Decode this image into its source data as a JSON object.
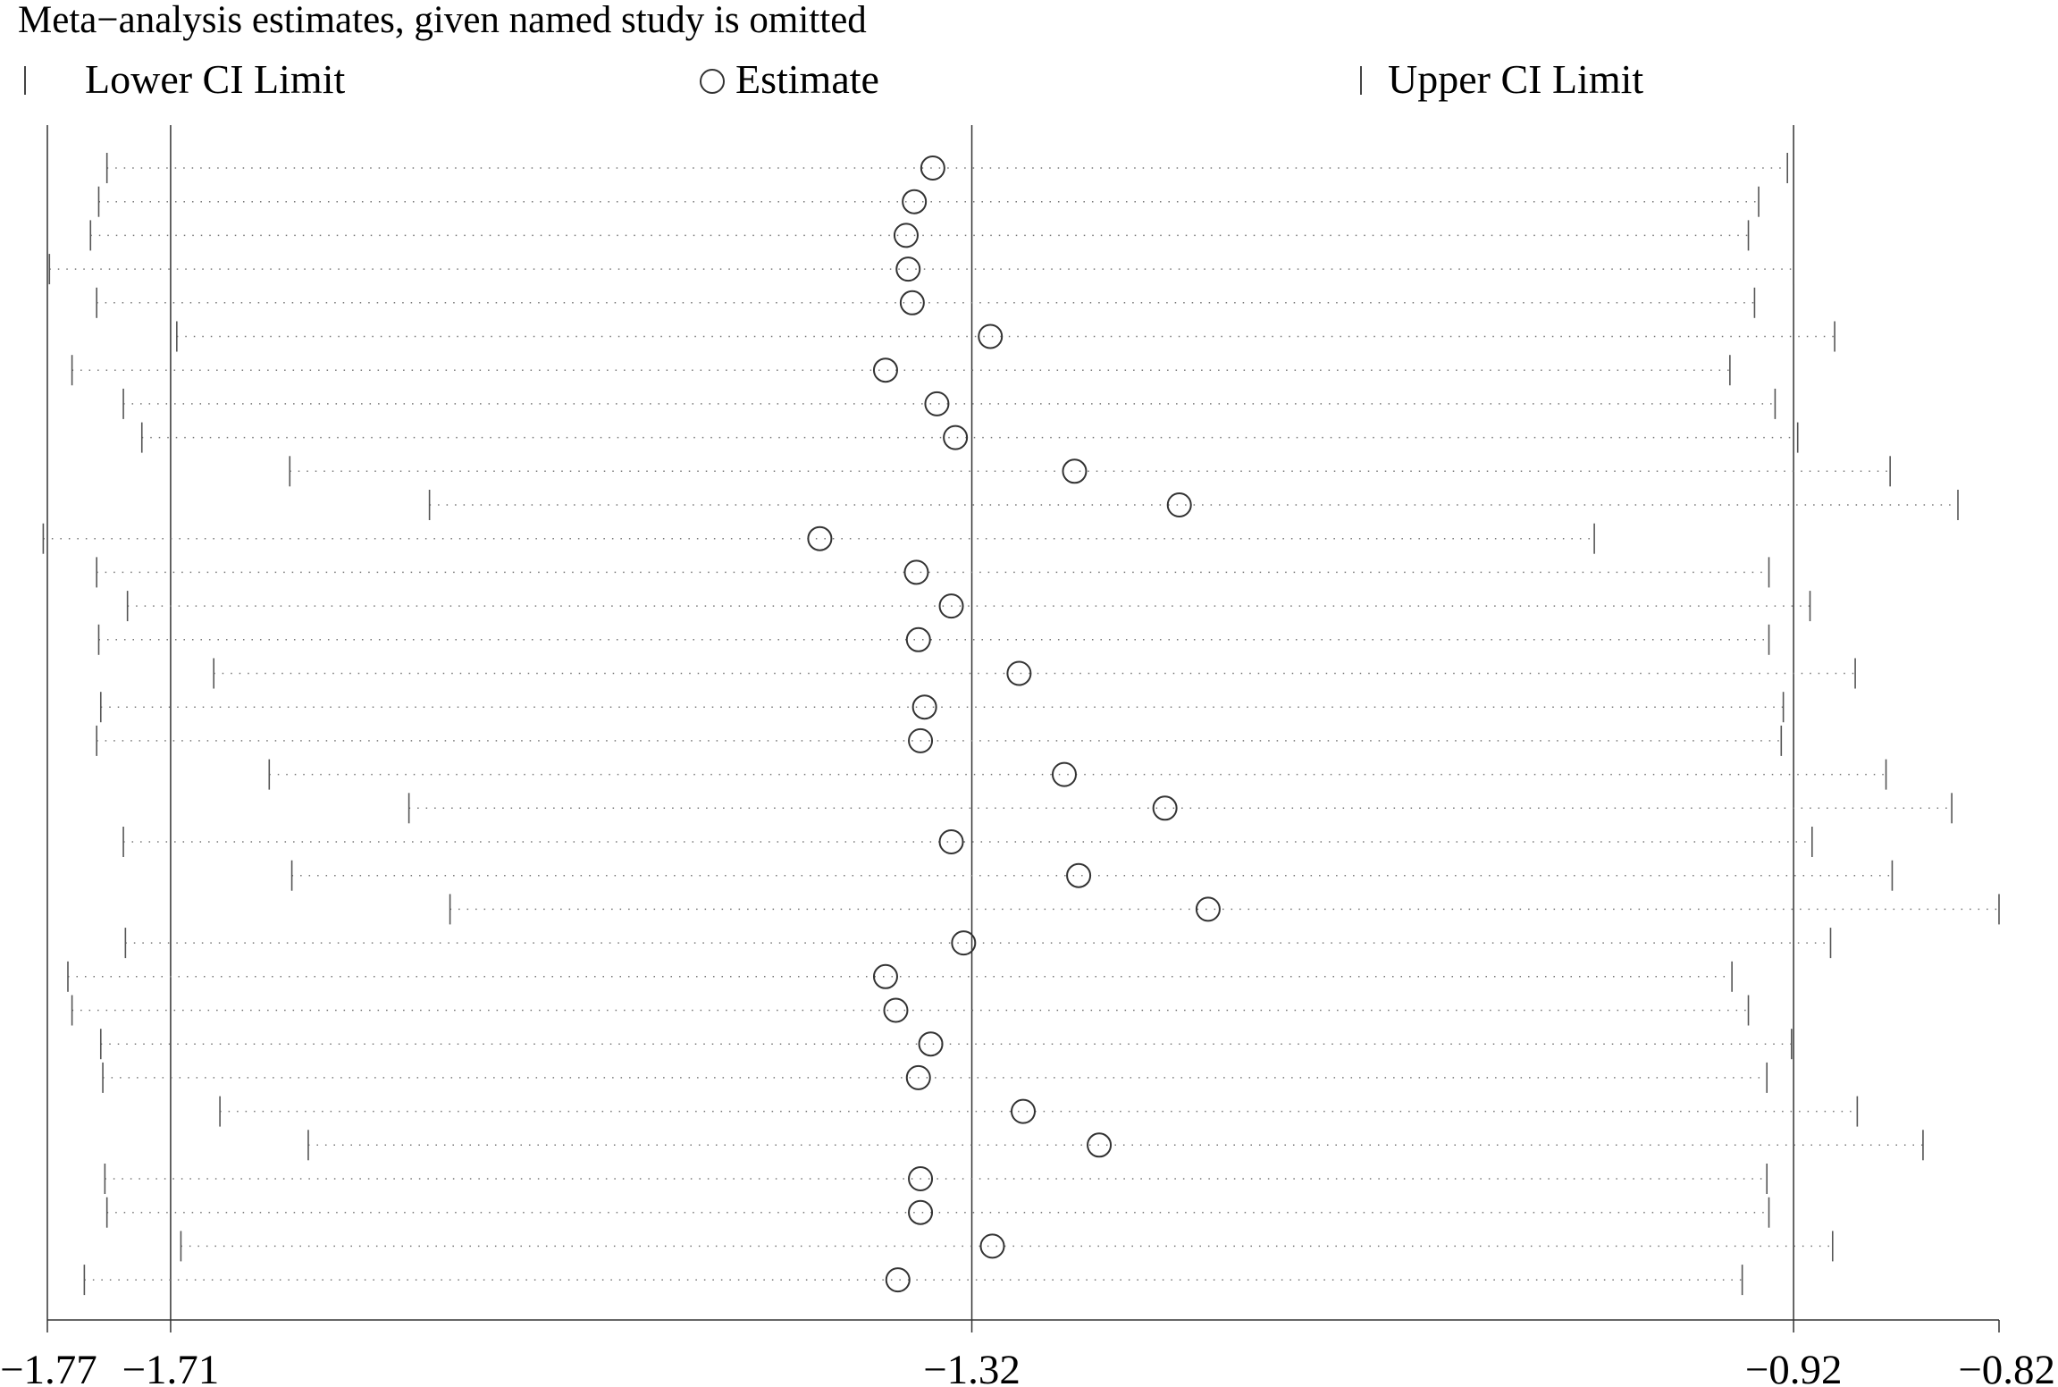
{
  "chart_data": {
    "type": "scatter",
    "title": "Meta−analysis estimates, given named study is omitted",
    "legend": {
      "lower": "Lower CI Limit",
      "estimate": "Estimate",
      "upper": "Upper CI Limit"
    },
    "xlim": [
      -1.77,
      -0.82
    ],
    "xticks": [
      -1.77,
      -1.71,
      -1.32,
      -0.92,
      -0.82
    ],
    "xtick_labels": [
      "−1.77",
      "−1.71",
      "−1.32",
      "−0.92",
      "−0.82"
    ],
    "reference_lines": [
      -1.71,
      -1.32,
      -0.92
    ],
    "studies": [
      {
        "lower": -1.741,
        "estimate": -1.339,
        "upper": -0.923
      },
      {
        "lower": -1.745,
        "estimate": -1.348,
        "upper": -0.937
      },
      {
        "lower": -1.749,
        "estimate": -1.352,
        "upper": -0.942
      },
      {
        "lower": -1.769,
        "estimate": -1.351,
        "upper": -0.92
      },
      {
        "lower": -1.746,
        "estimate": -1.349,
        "upper": -0.939
      },
      {
        "lower": -1.707,
        "estimate": -1.311,
        "upper": -0.9
      },
      {
        "lower": -1.758,
        "estimate": -1.362,
        "upper": -0.951
      },
      {
        "lower": -1.733,
        "estimate": -1.337,
        "upper": -0.929
      },
      {
        "lower": -1.724,
        "estimate": -1.328,
        "upper": -0.918
      },
      {
        "lower": -1.652,
        "estimate": -1.27,
        "upper": -0.873
      },
      {
        "lower": -1.584,
        "estimate": -1.219,
        "upper": -0.84
      },
      {
        "lower": -1.772,
        "estimate": -1.394,
        "upper": -1.017
      },
      {
        "lower": -1.746,
        "estimate": -1.347,
        "upper": -0.932
      },
      {
        "lower": -1.731,
        "estimate": -1.33,
        "upper": -0.912
      },
      {
        "lower": -1.745,
        "estimate": -1.346,
        "upper": -0.932
      },
      {
        "lower": -1.689,
        "estimate": -1.297,
        "upper": -0.89
      },
      {
        "lower": -1.744,
        "estimate": -1.343,
        "upper": -0.925
      },
      {
        "lower": -1.746,
        "estimate": -1.345,
        "upper": -0.926
      },
      {
        "lower": -1.662,
        "estimate": -1.275,
        "upper": -0.875
      },
      {
        "lower": -1.594,
        "estimate": -1.226,
        "upper": -0.843
      },
      {
        "lower": -1.733,
        "estimate": -1.33,
        "upper": -0.911
      },
      {
        "lower": -1.651,
        "estimate": -1.268,
        "upper": -0.872
      },
      {
        "lower": -1.574,
        "estimate": -1.205,
        "upper": -0.82
      },
      {
        "lower": -1.732,
        "estimate": -1.324,
        "upper": -0.902
      },
      {
        "lower": -1.76,
        "estimate": -1.362,
        "upper": -0.95
      },
      {
        "lower": -1.758,
        "estimate": -1.357,
        "upper": -0.942
      },
      {
        "lower": -1.744,
        "estimate": -1.34,
        "upper": -0.921
      },
      {
        "lower": -1.743,
        "estimate": -1.346,
        "upper": -0.933
      },
      {
        "lower": -1.686,
        "estimate": -1.295,
        "upper": -0.889
      },
      {
        "lower": -1.643,
        "estimate": -1.258,
        "upper": -0.857
      },
      {
        "lower": -1.742,
        "estimate": -1.345,
        "upper": -0.933
      },
      {
        "lower": -1.741,
        "estimate": -1.345,
        "upper": -0.932
      },
      {
        "lower": -1.705,
        "estimate": -1.31,
        "upper": -0.901
      },
      {
        "lower": -1.752,
        "estimate": -1.356,
        "upper": -0.945
      }
    ]
  }
}
